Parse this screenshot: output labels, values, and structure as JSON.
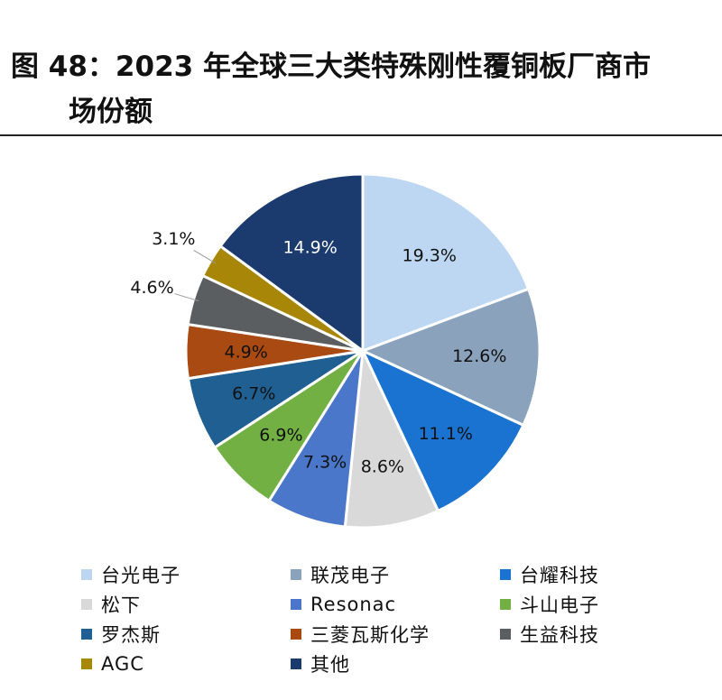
{
  "title": {
    "line1": "图 48：2023 年全球三大类特殊刚性覆铜板厂商市",
    "line2": "场份额"
  },
  "chart_data": {
    "type": "pie",
    "start_angle_deg": 0,
    "direction": "clockwise",
    "slices": [
      {
        "name": "台光电子",
        "value": 19.3,
        "label": "19.3%",
        "color": "#bdd7f2",
        "label_inside": true
      },
      {
        "name": "联茂电子",
        "value": 12.6,
        "label": "12.6%",
        "color": "#8aa2bc",
        "label_inside": true
      },
      {
        "name": "台耀科技",
        "value": 11.1,
        "label": "11.1%",
        "color": "#1a73d0",
        "label_inside": true
      },
      {
        "name": "松下",
        "value": 8.6,
        "label": "8.6%",
        "color": "#d9d9d9",
        "label_inside": true
      },
      {
        "name": "Resonac",
        "value": 7.3,
        "label": "7.3%",
        "color": "#4a77c9",
        "label_inside": true
      },
      {
        "name": "斗山电子",
        "value": 6.9,
        "label": "6.9%",
        "color": "#72b043",
        "label_inside": true
      },
      {
        "name": "罗杰斯",
        "value": 6.7,
        "label": "6.7%",
        "color": "#1f5f91",
        "label_inside": true
      },
      {
        "name": "三菱瓦斯化学",
        "value": 4.9,
        "label": "4.9%",
        "color": "#a94a12",
        "label_inside": true
      },
      {
        "name": "生益科技",
        "value": 4.6,
        "label": "4.6%",
        "color": "#5b5e60",
        "label_inside": false
      },
      {
        "name": "AGC",
        "value": 3.1,
        "label": "3.1%",
        "color": "#a88708",
        "label_inside": false
      },
      {
        "name": "其他",
        "value": 14.9,
        "label": "14.9%",
        "color": "#1b3a6d",
        "label_inside": true
      }
    ]
  },
  "legend": [
    {
      "label": "台光电子",
      "color": "#bdd7f2"
    },
    {
      "label": "联茂电子",
      "color": "#8aa2bc"
    },
    {
      "label": "台耀科技",
      "color": "#1a73d0"
    },
    {
      "label": "松下",
      "color": "#d9d9d9"
    },
    {
      "label": "Resonac",
      "color": "#4a77c9"
    },
    {
      "label": "斗山电子",
      "color": "#72b043"
    },
    {
      "label": "罗杰斯",
      "color": "#1f5f91"
    },
    {
      "label": "三菱瓦斯化学",
      "color": "#a94a12"
    },
    {
      "label": "生益科技",
      "color": "#5b5e60"
    },
    {
      "label": "AGC",
      "color": "#a88708"
    },
    {
      "label": "其他",
      "color": "#1b3a6d"
    }
  ]
}
